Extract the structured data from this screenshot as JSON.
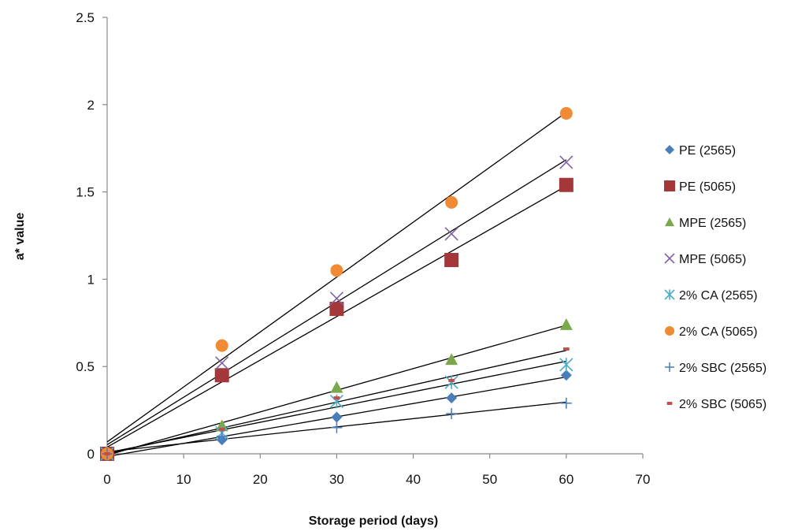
{
  "chart_data": {
    "type": "scatter",
    "title": "",
    "xlabel": "Storage period  (days)",
    "ylabel": "a* value",
    "xlim": [
      0,
      70
    ],
    "ylim": [
      0,
      2.5
    ],
    "xticks": [
      0,
      10,
      20,
      30,
      40,
      50,
      60,
      70
    ],
    "yticks": [
      0,
      0.5,
      1,
      1.5,
      2,
      2.5
    ],
    "ytick_labels": [
      "0",
      "0.5",
      "1",
      "1.5",
      "2",
      "2.5"
    ],
    "grid": false,
    "legend_position": "right",
    "trendlines": "linear",
    "x": [
      0,
      15,
      30,
      45,
      60
    ],
    "series": [
      {
        "name": "PE (2565)",
        "marker": "diamond",
        "color": "#4A7EBB",
        "values": [
          0,
          0.08,
          0.21,
          0.32,
          0.45
        ]
      },
      {
        "name": "PE (5065)",
        "marker": "square",
        "color": "#A4373A",
        "values": [
          0,
          0.45,
          0.83,
          1.11,
          1.54
        ]
      },
      {
        "name": "MPE (2565)",
        "marker": "triangle",
        "color": "#7AA84A",
        "values": [
          0,
          0.16,
          0.38,
          0.54,
          0.74
        ]
      },
      {
        "name": "MPE (5065)",
        "marker": "x",
        "color": "#8064A2",
        "values": [
          0,
          0.52,
          0.89,
          1.26,
          1.67
        ]
      },
      {
        "name": "2% CA (2565)",
        "marker": "asterisk",
        "color": "#4BACC6",
        "values": [
          0,
          0.12,
          0.3,
          0.41,
          0.51
        ]
      },
      {
        "name": "2% CA (5065)",
        "marker": "circle",
        "color": "#F08A34",
        "values": [
          0,
          0.62,
          1.05,
          1.44,
          1.95
        ]
      },
      {
        "name": "2% SBC (2565)",
        "marker": "plus",
        "color": "#4F81BD",
        "values": [
          0,
          0.1,
          0.15,
          0.23,
          0.29
        ]
      },
      {
        "name": "2% SBC (5065)",
        "marker": "dash",
        "color": "#C0504D",
        "values": [
          0,
          0.14,
          0.32,
          0.42,
          0.6
        ]
      }
    ]
  }
}
